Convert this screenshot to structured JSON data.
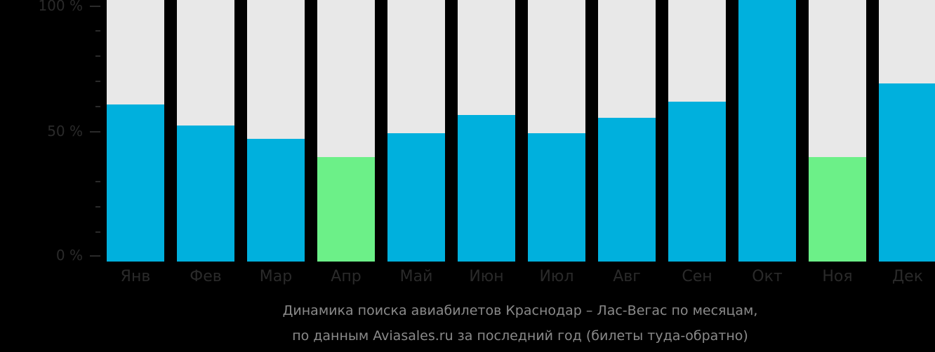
{
  "chart_data": {
    "type": "bar",
    "title": "Динамика поиска авиабилетов Краснодар – Лас-Вегас по месяцам,",
    "subtitle": "по данным Aviasales.ru за последний год (билеты туда-обратно)",
    "xlabel": "",
    "ylabel": "",
    "ylim": [
      0,
      100
    ],
    "yticks": [
      "0 %",
      "50 %",
      "100 %"
    ],
    "categories": [
      "Янв",
      "Фев",
      "Мар",
      "Апр",
      "Май",
      "Июн",
      "Июл",
      "Авг",
      "Сен",
      "Окт",
      "Ноя",
      "Дек"
    ],
    "values": [
      60,
      52,
      47,
      40,
      49,
      56,
      49,
      55,
      61,
      100,
      40,
      68
    ],
    "highlight_min": [
      "Апр",
      "Ноя"
    ],
    "colors": {
      "bar": "#00b0dd",
      "min": "#6cf088",
      "track": "#e8e8e8",
      "background": "#000000"
    },
    "grid": false,
    "legend": null
  }
}
